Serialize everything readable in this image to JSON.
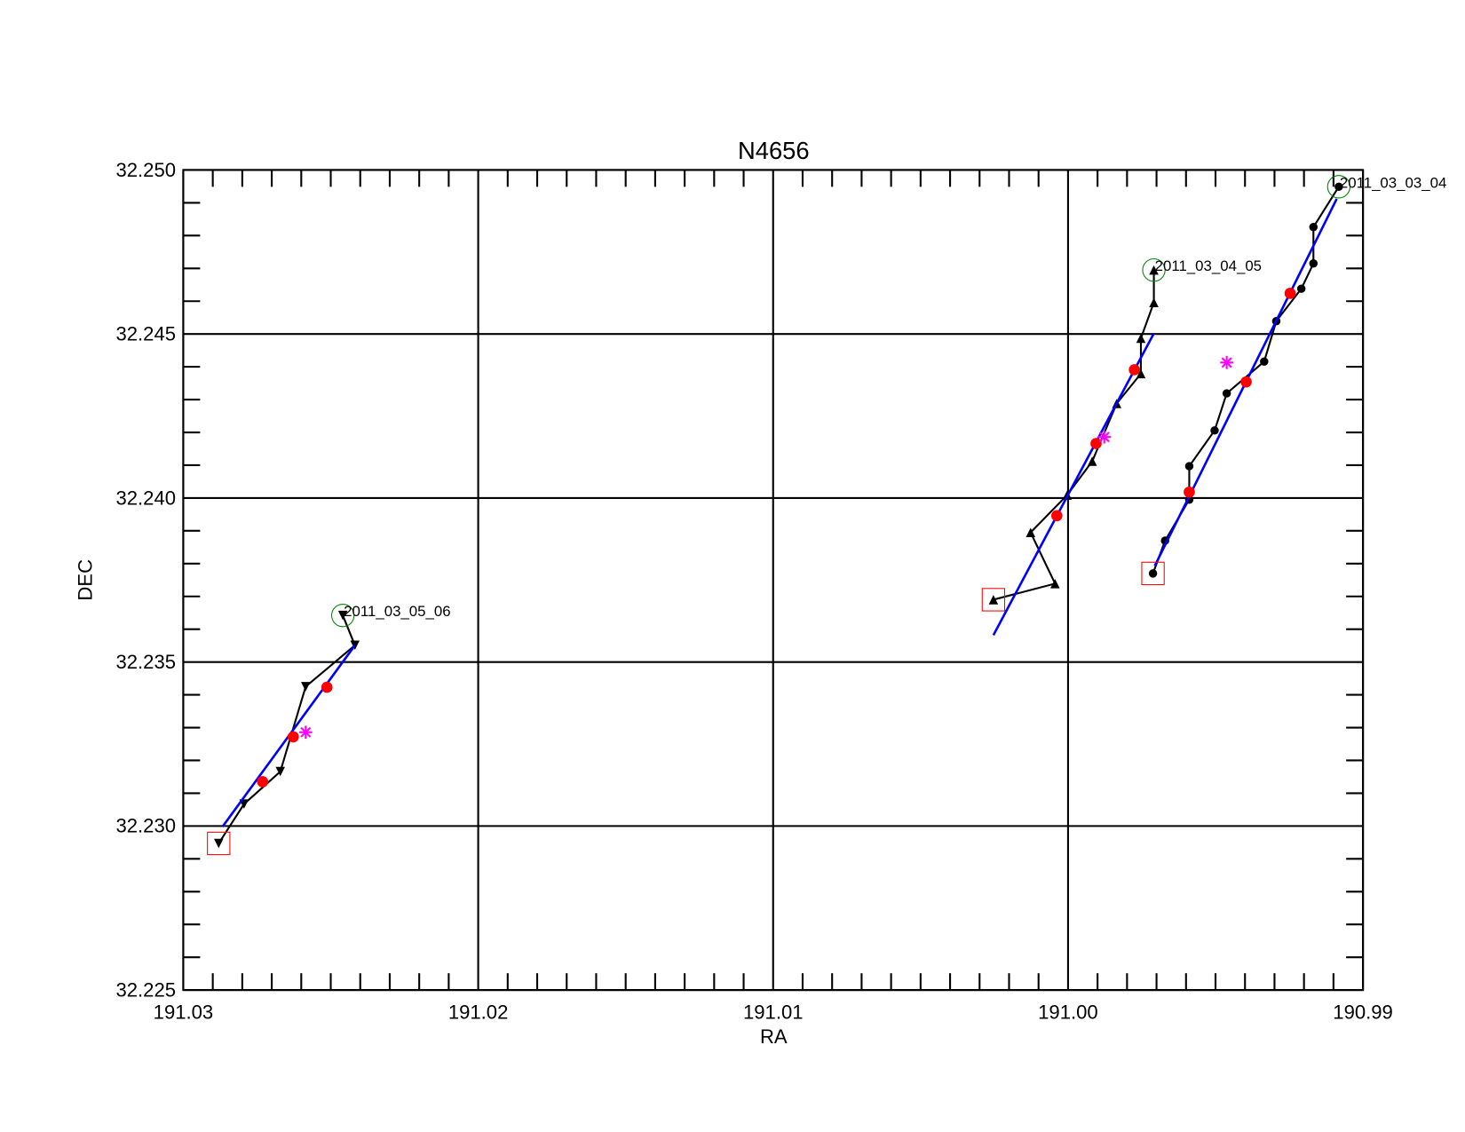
{
  "chart_data": {
    "type": "scatter",
    "title": "N4656",
    "x_label": "RA",
    "y_label": "DEC",
    "xlim": [
      191.03,
      190.99
    ],
    "ylim": [
      32.225,
      32.25
    ],
    "xticks": [
      191.03,
      191.02,
      191.01,
      {
        "value": 191,
        "label": "191.00"
      },
      190.99
    ],
    "yticks": [
      {
        "value": 32.25,
        "label": "32.250"
      },
      32.245,
      {
        "value": 32.24,
        "label": "32.240"
      },
      32.235,
      {
        "value": 32.23,
        "label": "32.230"
      },
      32.225
    ],
    "x_minor": 10,
    "y_minor": 5,
    "grid": true,
    "start_marker_color": "#ff0000",
    "end_marker_color": "#008000",
    "series": [
      {
        "name": "2011_03_05_06",
        "marker": "triangle-down",
        "color": "#000000",
        "x": [
          191.0288,
          191.02794,
          191.02671,
          191.02585,
          191.02418,
          191.02459
        ],
        "values": [
          32.22947,
          32.23067,
          32.23166,
          32.23425,
          32.23551,
          32.23642
        ],
        "means": {
          "color": "#ff0000",
          "x": [
            191.02731,
            191.02627,
            191.02513
          ],
          "values": [
            32.23135,
            32.23272,
            32.23423
          ]
        },
        "center": {
          "color": "#ff00ff",
          "x": 191.02585,
          "value": 32.23286
        },
        "fit": {
          "color": "#0000ff",
          "x": [
            191.02867,
            191.02418
          ],
          "values": [
            32.22998,
            32.23551
          ]
        }
      },
      {
        "name": "2011_03_04_05",
        "marker": "triangle-up",
        "color": "#000000",
        "x": [
          191.00253,
          191.00044,
          191.00127,
          191.00003,
          190.99918,
          190.99835,
          190.99753,
          190.99753,
          190.99709,
          190.99709
        ],
        "values": [
          32.2369,
          32.23739,
          32.23895,
          32.24009,
          32.24112,
          32.24288,
          32.24379,
          32.24487,
          32.24596,
          32.24695
        ],
        "means": {
          "color": "#ff0000",
          "x": [
            191.00038,
            190.99905,
            190.99775
          ],
          "values": [
            32.23946,
            32.24166,
            32.24391
          ]
        },
        "center": {
          "color": "#ff00ff",
          "x": 190.99877,
          "value": 32.24186
        },
        "fit": {
          "color": "#0000ff",
          "x": [
            191.00253,
            190.99709
          ],
          "values": [
            32.23582,
            32.24502
          ]
        }
      },
      {
        "name": "2011_03_03_04",
        "marker": "circle",
        "color": "#000000",
        "x": [
          190.99712,
          190.99671,
          190.99589,
          190.99589,
          190.99503,
          190.99462,
          190.99335,
          190.99294,
          190.99209,
          190.99168,
          190.99168,
          190.99082
        ],
        "values": [
          32.2377,
          32.2387,
          32.23995,
          32.24097,
          32.24206,
          32.24319,
          32.24416,
          32.24539,
          32.24638,
          32.24715,
          32.24826,
          32.24949
        ],
        "means": {
          "color": "#ff0000",
          "x": [
            190.99589,
            190.99396,
            190.99247
          ],
          "values": [
            32.24018,
            32.24354,
            32.24624
          ]
        },
        "center": {
          "color": "#ff00ff",
          "x": 190.99462,
          "value": 32.24413
        },
        "fit": {
          "color": "#0000ff",
          "x": [
            190.99706,
            190.99089
          ],
          "values": [
            32.23793,
            32.24912
          ]
        }
      }
    ]
  }
}
